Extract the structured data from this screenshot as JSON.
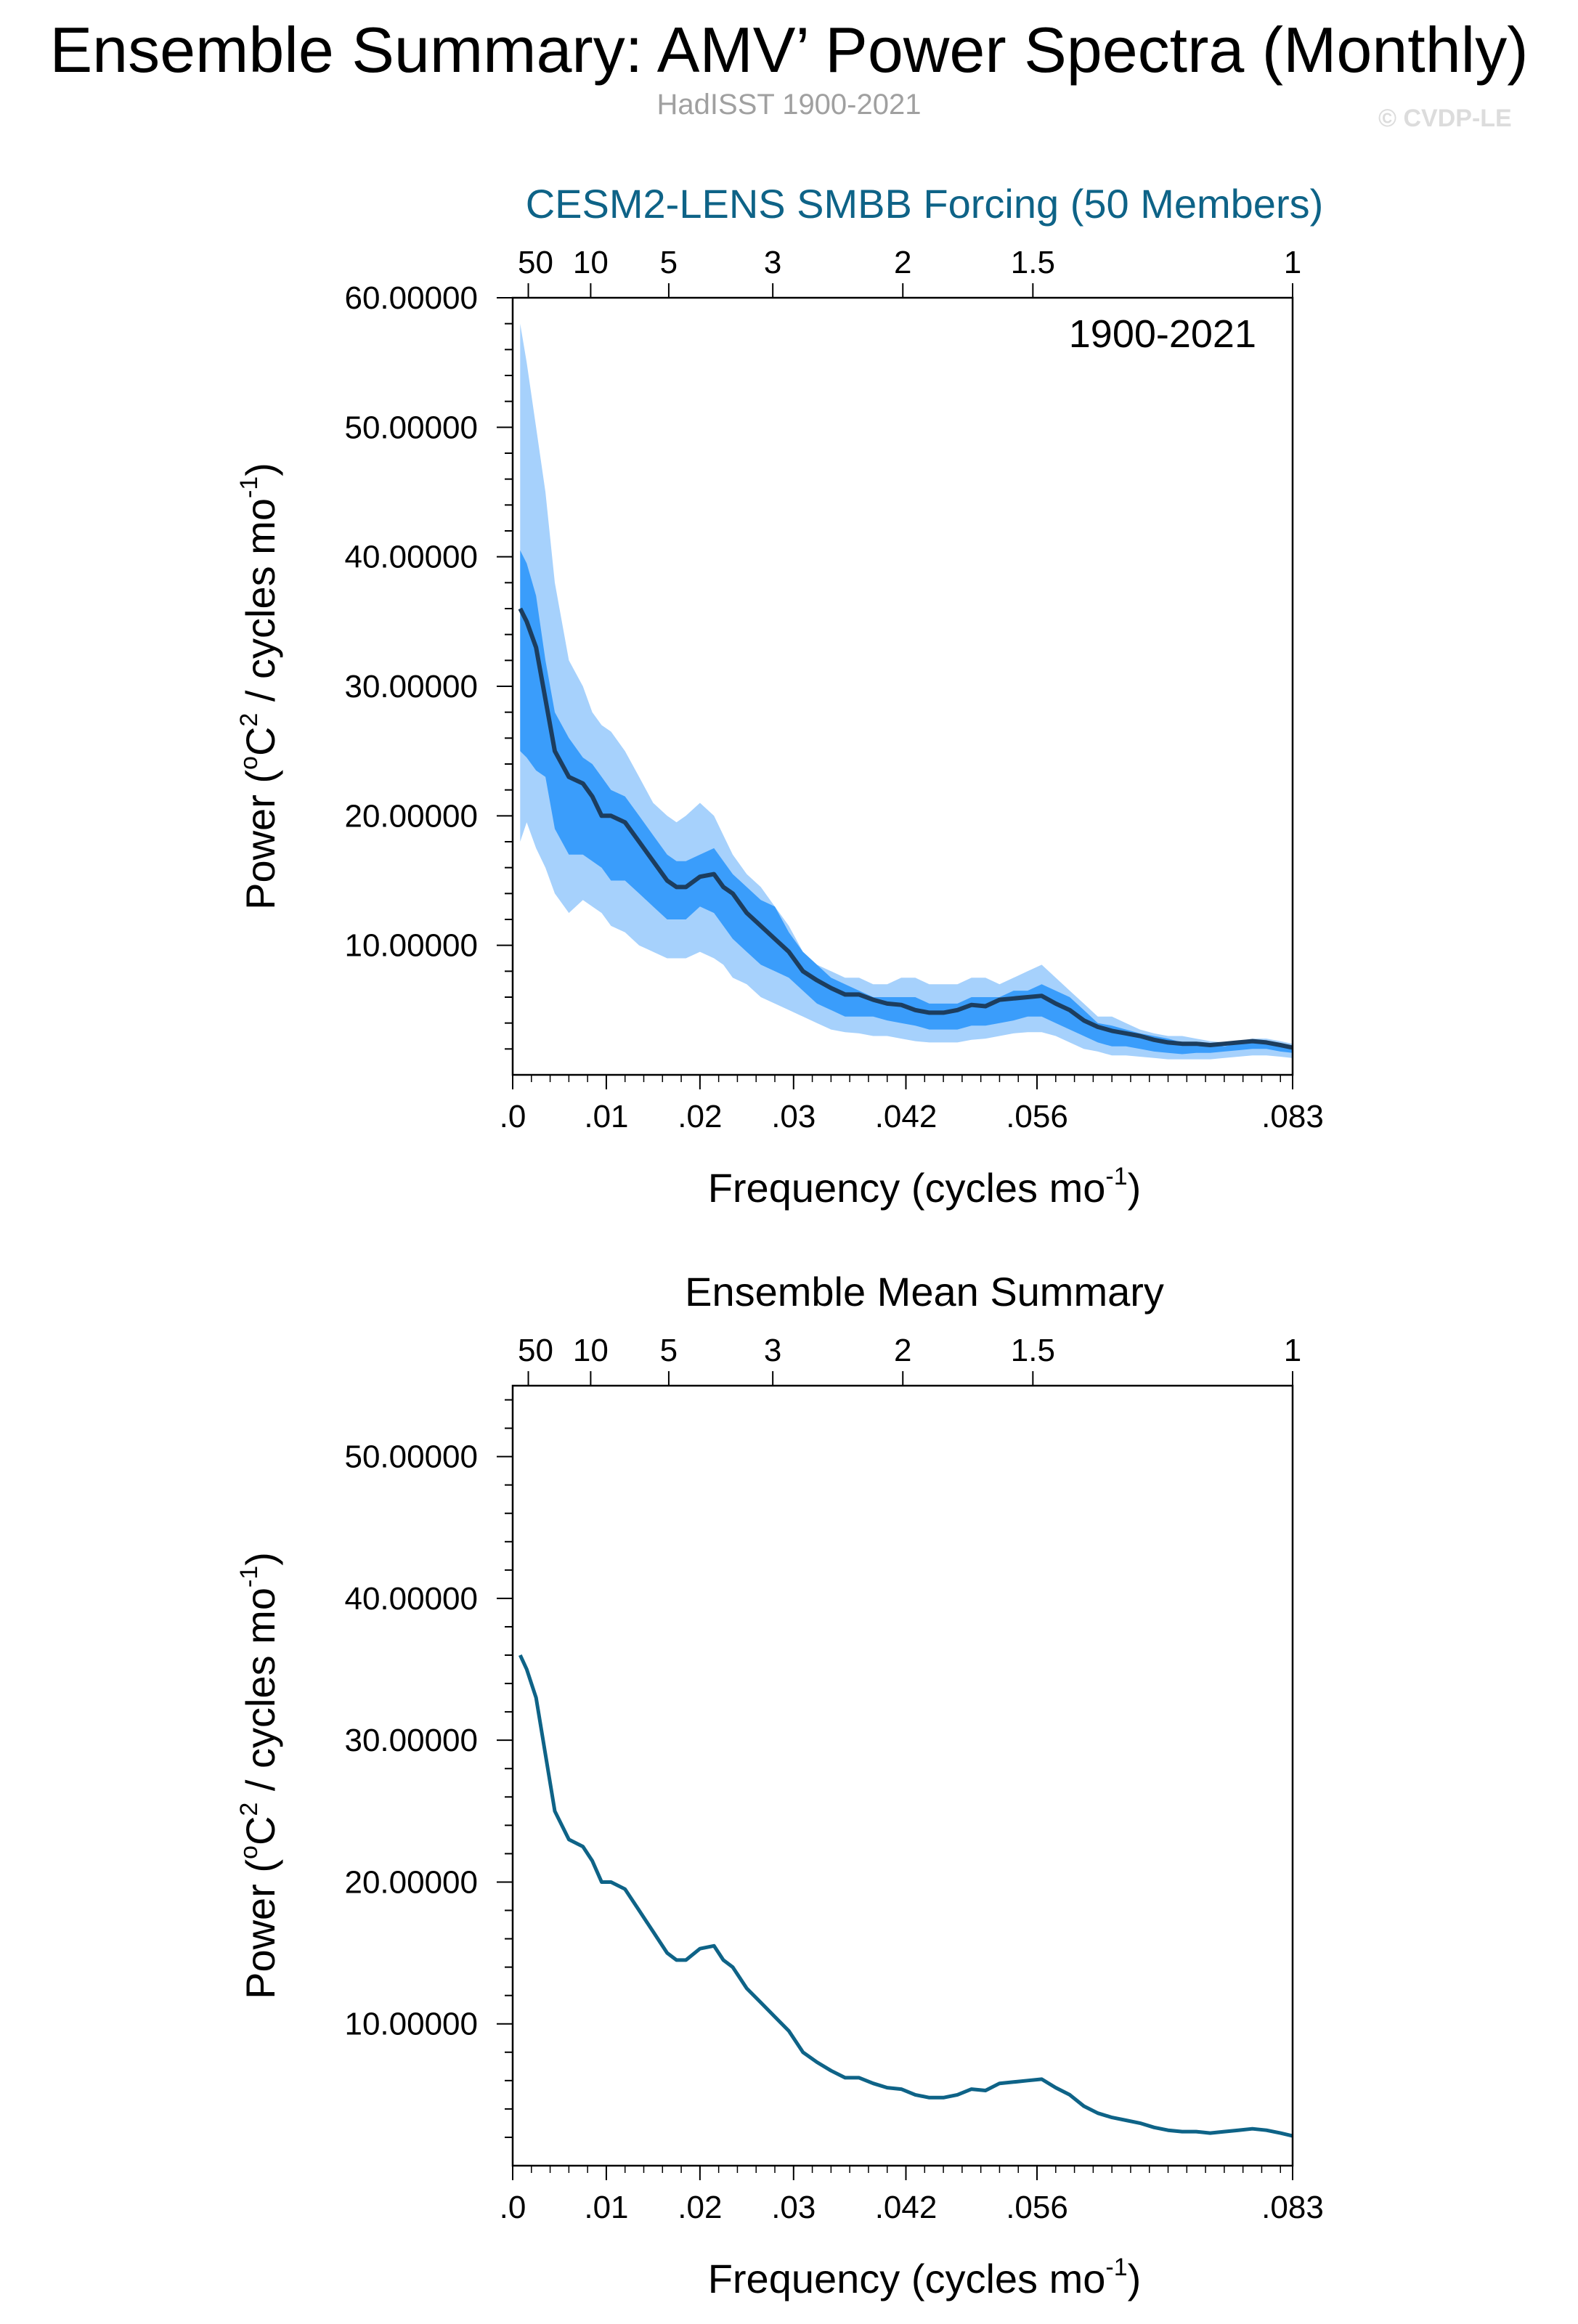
{
  "header": {
    "title": "Ensemble Summary: AMV’ Power Spectra (Monthly)",
    "subtitle": "HadISST 1900-2021",
    "copyright": "© CVDP-LE"
  },
  "colors": {
    "outer_band": "#a6d1fc",
    "inner_band": "#3a9dfb",
    "median_line_top": "#1c3d5e",
    "mean_line_bottom": "#0e6387",
    "panel1_title": "#0e6387"
  },
  "chart_data": [
    {
      "type": "area",
      "title": "CESM2-LENS SMBB Forcing (50 Members)",
      "annotation": "1900-2021",
      "xlabel": "Frequency (cycles mo",
      "xlabel_sup": "-1",
      "xlabel_end": ")",
      "ylabel": "Power (",
      "ylabel_sup1": "o",
      "ylabel_mid": "C",
      "ylabel_sup2": "2",
      "ylabel_mid2": " / cycles mo",
      "ylabel_sup3": "-1",
      "ylabel_end": ")",
      "xlim": [
        0.0,
        0.0833
      ],
      "ylim": [
        0,
        60
      ],
      "x_ticks": [
        ".0",
        ".01",
        ".02",
        ".03",
        ".042",
        ".056",
        ".083"
      ],
      "x_tick_values": [
        0.0,
        0.01,
        0.02,
        0.03,
        0.042,
        0.056,
        0.0833
      ],
      "top_ticks": [
        "50",
        "10",
        "5",
        "3",
        "2",
        "1.5",
        "1"
      ],
      "top_tick_values": [
        0.00167,
        0.00833,
        0.01667,
        0.02778,
        0.04167,
        0.05556,
        0.0833
      ],
      "y_ticks": [
        "10.00000",
        "20.00000",
        "30.00000",
        "40.00000",
        "50.00000",
        "60.00000"
      ],
      "y_tick_values": [
        10,
        20,
        30,
        40,
        50,
        60
      ],
      "x": [
        0.0008,
        0.0015,
        0.0025,
        0.0035,
        0.0045,
        0.006,
        0.0075,
        0.0085,
        0.0095,
        0.0105,
        0.012,
        0.0135,
        0.015,
        0.0165,
        0.0175,
        0.0185,
        0.02,
        0.0215,
        0.0225,
        0.0235,
        0.025,
        0.0265,
        0.028,
        0.0295,
        0.031,
        0.0325,
        0.034,
        0.0355,
        0.037,
        0.0385,
        0.04,
        0.0415,
        0.043,
        0.0445,
        0.046,
        0.0475,
        0.049,
        0.0505,
        0.052,
        0.0535,
        0.055,
        0.0565,
        0.058,
        0.0595,
        0.061,
        0.0625,
        0.064,
        0.0655,
        0.067,
        0.0685,
        0.07,
        0.0715,
        0.073,
        0.0745,
        0.076,
        0.0775,
        0.079,
        0.0805,
        0.082,
        0.0833
      ],
      "series": [
        {
          "role": "upper-outer",
          "values": [
            58,
            55,
            50,
            45,
            38,
            32,
            30,
            28,
            27,
            26.5,
            25,
            23,
            21,
            20,
            19.5,
            20,
            21,
            20,
            18.5,
            17,
            15.5,
            14.5,
            13,
            11.5,
            9.5,
            8.5,
            8,
            7.5,
            7.5,
            7,
            7,
            7.5,
            7.5,
            7,
            7,
            7,
            7.5,
            7.5,
            7,
            7.5,
            8,
            8.5,
            7.5,
            6.5,
            5.5,
            4.5,
            4.5,
            4,
            3.5,
            3.2,
            3,
            3,
            2.8,
            2.6,
            2.5,
            2.6,
            2.8,
            2.8,
            2.6,
            2.4
          ]
        },
        {
          "role": "upper-inner",
          "values": [
            40.5,
            39.5,
            37,
            32,
            28,
            26,
            24.5,
            24,
            23,
            22,
            21.5,
            20,
            18.5,
            17,
            16.5,
            16.5,
            17,
            17.5,
            16.5,
            15.5,
            14.5,
            13.5,
            13,
            11,
            9.5,
            8.5,
            7.5,
            7,
            6.5,
            6,
            6,
            6,
            6,
            5.5,
            5.5,
            5.5,
            6,
            6,
            6,
            6.5,
            6.5,
            7,
            6.5,
            6,
            5,
            4,
            3.8,
            3.5,
            3.2,
            3,
            2.8,
            2.5,
            2.3,
            2.3,
            2.2,
            2.4,
            2.5,
            2.6,
            2.4,
            2.2
          ]
        },
        {
          "role": "median",
          "values": [
            36,
            35,
            33,
            29,
            25,
            23,
            22.5,
            21.5,
            20,
            20,
            19.5,
            18,
            16.5,
            15,
            14.5,
            14.5,
            15.3,
            15.5,
            14.5,
            14,
            12.5,
            11.5,
            10.5,
            9.5,
            8,
            7.3,
            6.7,
            6.2,
            6.2,
            5.8,
            5.5,
            5.4,
            5,
            4.8,
            4.8,
            5,
            5.4,
            5.3,
            5.8,
            5.9,
            6,
            6.1,
            5.5,
            5,
            4.2,
            3.7,
            3.4,
            3.2,
            3,
            2.7,
            2.5,
            2.4,
            2.4,
            2.3,
            2.4,
            2.5,
            2.6,
            2.5,
            2.3,
            2.1
          ]
        },
        {
          "role": "lower-inner",
          "values": [
            25,
            24.5,
            23.5,
            23,
            19,
            17,
            17,
            16.5,
            16,
            15,
            15,
            14,
            13,
            12,
            12,
            12,
            13,
            12.5,
            11.5,
            10.5,
            9.5,
            8.5,
            8,
            7.5,
            6.5,
            5.5,
            5,
            4.5,
            4.5,
            4.5,
            4.2,
            4,
            3.8,
            3.5,
            3.5,
            3.5,
            3.8,
            3.8,
            4,
            4.2,
            4.5,
            4.5,
            4,
            3.5,
            3,
            2.5,
            2.2,
            2.2,
            2,
            1.8,
            1.7,
            1.6,
            1.7,
            1.7,
            1.8,
            1.9,
            2,
            2,
            1.8,
            1.7
          ]
        },
        {
          "role": "lower-outer",
          "values": [
            18,
            19.5,
            17.5,
            16,
            14,
            12.5,
            13.5,
            13,
            12.5,
            11.5,
            11,
            10,
            9.5,
            9,
            9,
            9,
            9.5,
            9,
            8.5,
            7.5,
            7,
            6,
            5.5,
            5,
            4.5,
            4,
            3.5,
            3.3,
            3.2,
            3,
            3,
            2.8,
            2.6,
            2.5,
            2.5,
            2.5,
            2.7,
            2.8,
            3,
            3.2,
            3.3,
            3.3,
            3,
            2.5,
            2,
            1.8,
            1.5,
            1.5,
            1.4,
            1.3,
            1.2,
            1.2,
            1.2,
            1.2,
            1.3,
            1.4,
            1.5,
            1.5,
            1.4,
            1.3
          ]
        }
      ]
    },
    {
      "type": "line",
      "title": "Ensemble Mean Summary",
      "xlabel": "Frequency (cycles mo",
      "xlabel_sup": "-1",
      "xlabel_end": ")",
      "ylabel": "Power (",
      "ylabel_sup1": "o",
      "ylabel_mid": "C",
      "ylabel_sup2": "2",
      "ylabel_mid2": " / cycles mo",
      "ylabel_sup3": "-1",
      "ylabel_end": ")",
      "xlim": [
        0.0,
        0.0833
      ],
      "ylim": [
        0,
        55
      ],
      "x_ticks": [
        ".0",
        ".01",
        ".02",
        ".03",
        ".042",
        ".056",
        ".083"
      ],
      "x_tick_values": [
        0.0,
        0.01,
        0.02,
        0.03,
        0.042,
        0.056,
        0.0833
      ],
      "top_ticks": [
        "50",
        "10",
        "5",
        "3",
        "2",
        "1.5",
        "1"
      ],
      "top_tick_values": [
        0.00167,
        0.00833,
        0.01667,
        0.02778,
        0.04167,
        0.05556,
        0.0833
      ],
      "y_ticks": [
        "10.00000",
        "20.00000",
        "30.00000",
        "40.00000",
        "50.00000"
      ],
      "y_tick_values": [
        10,
        20,
        30,
        40,
        50
      ],
      "x": [
        0.0008,
        0.0015,
        0.0025,
        0.0035,
        0.0045,
        0.006,
        0.0075,
        0.0085,
        0.0095,
        0.0105,
        0.012,
        0.0135,
        0.015,
        0.0165,
        0.0175,
        0.0185,
        0.02,
        0.0215,
        0.0225,
        0.0235,
        0.025,
        0.0265,
        0.028,
        0.0295,
        0.031,
        0.0325,
        0.034,
        0.0355,
        0.037,
        0.0385,
        0.04,
        0.0415,
        0.043,
        0.0445,
        0.046,
        0.0475,
        0.049,
        0.0505,
        0.052,
        0.0535,
        0.055,
        0.0565,
        0.058,
        0.0595,
        0.061,
        0.0625,
        0.064,
        0.0655,
        0.067,
        0.0685,
        0.07,
        0.0715,
        0.073,
        0.0745,
        0.076,
        0.0775,
        0.079,
        0.0805,
        0.082,
        0.0833
      ],
      "series": [
        {
          "role": "mean",
          "values": [
            36,
            35,
            33,
            29,
            25,
            23,
            22.5,
            21.5,
            20,
            20,
            19.5,
            18,
            16.5,
            15,
            14.5,
            14.5,
            15.3,
            15.5,
            14.5,
            14,
            12.5,
            11.5,
            10.5,
            9.5,
            8,
            7.3,
            6.7,
            6.2,
            6.2,
            5.8,
            5.5,
            5.4,
            5,
            4.8,
            4.8,
            5,
            5.4,
            5.3,
            5.8,
            5.9,
            6,
            6.1,
            5.5,
            5,
            4.2,
            3.7,
            3.4,
            3.2,
            3,
            2.7,
            2.5,
            2.4,
            2.4,
            2.3,
            2.4,
            2.5,
            2.6,
            2.5,
            2.3,
            2.1
          ]
        }
      ]
    }
  ]
}
